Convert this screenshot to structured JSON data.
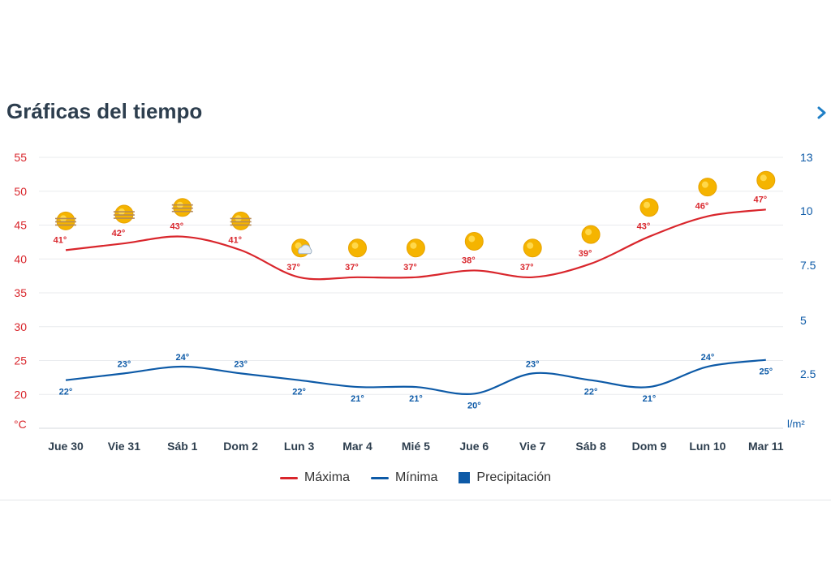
{
  "header": {
    "title": "Gráficas del tiempo"
  },
  "colors": {
    "max": "#d9262c",
    "min": "#0d5aa7",
    "precip": "#0d5aa7",
    "left_axis": "#d9262c",
    "right_axis": "#0d5aa7",
    "title": "#2d3e4e",
    "sun": "#f5b400"
  },
  "chart_data": {
    "type": "line",
    "categories": [
      "Jue 30",
      "Vie 31",
      "Sáb 1",
      "Dom 2",
      "Lun 3",
      "Mar 4",
      "Mié 5",
      "Jue 6",
      "Vie 7",
      "Sáb 8",
      "Dom 9",
      "Lun 10",
      "Mar 11"
    ],
    "series": [
      {
        "name": "Máxima",
        "color": "#d9262c",
        "values": [
          41,
          42,
          43,
          41,
          37,
          37,
          37,
          38,
          37,
          39,
          43,
          46,
          47
        ],
        "labels": [
          "41°",
          "42°",
          "43°",
          "41°",
          "37°",
          "37°",
          "37°",
          "38°",
          "37°",
          "39°",
          "43°",
          "46°",
          "47°"
        ]
      },
      {
        "name": "Mínima",
        "color": "#0d5aa7",
        "values": [
          22,
          23,
          24,
          23,
          22,
          21,
          21,
          20,
          23,
          22,
          21,
          24,
          25
        ],
        "labels": [
          "22°",
          "23°",
          "24°",
          "23°",
          "22°",
          "21°",
          "21°",
          "20°",
          "23°",
          "22°",
          "21°",
          "24°",
          "25°"
        ]
      },
      {
        "name": "Precipitación",
        "color": "#0d5aa7",
        "values": [
          0,
          0,
          0,
          0,
          0,
          0,
          0,
          0,
          0,
          0,
          0,
          0,
          0
        ]
      }
    ],
    "weather_icons": [
      "sun-haze",
      "sun-haze",
      "sun-haze",
      "sun-haze",
      "sun-cloud",
      "sun",
      "sun",
      "sun",
      "sun",
      "sun",
      "sun",
      "sun",
      "sun"
    ],
    "y_left": {
      "unit": "°C",
      "ticks": [
        20,
        25,
        30,
        35,
        40,
        45,
        50,
        55
      ],
      "range": [
        15,
        55
      ]
    },
    "y_right": {
      "unit": "l/m²",
      "ticks": [
        "2.5",
        "5",
        "7.5",
        "10",
        "13"
      ],
      "tick_values": [
        2.5,
        5,
        7.5,
        10,
        13
      ]
    },
    "grid": true,
    "legend_position": "bottom"
  }
}
